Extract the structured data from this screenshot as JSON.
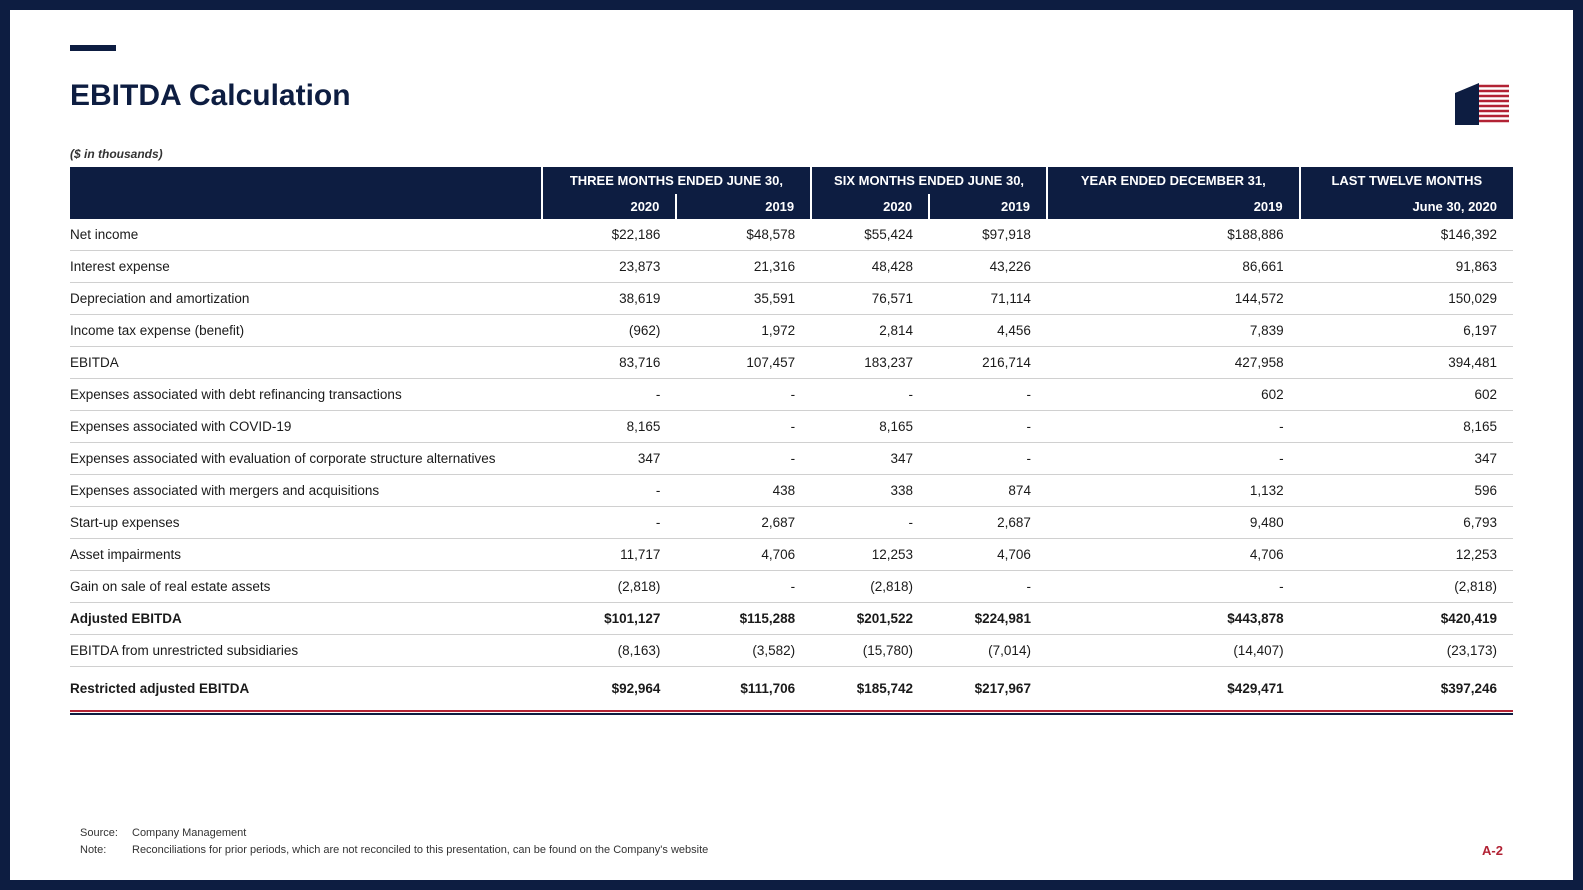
{
  "colors": {
    "navy": "#0d1d41",
    "red": "#b22234",
    "text": "#1a1a1a",
    "border_light": "#d0d0d0",
    "white": "#ffffff"
  },
  "title": "EBITDA Calculation",
  "subtitle": "($ in thousands)",
  "table": {
    "group_headers": [
      "",
      "THREE MONTHS ENDED JUNE 30,",
      "SIX MONTHS ENDED JUNE 30,",
      "YEAR ENDED DECEMBER 31,",
      "LAST TWELVE MONTHS"
    ],
    "year_headers": [
      "",
      "2020",
      "2019",
      "2020",
      "2019",
      "2019",
      "June 30, 2020"
    ],
    "col_widths_label": "420px",
    "rows": [
      {
        "label": "Net income",
        "v": [
          "$22,186",
          "$48,578",
          "$55,424",
          "$97,918",
          "$188,886",
          "$146,392"
        ],
        "bold": false
      },
      {
        "label": "Interest expense",
        "v": [
          "23,873",
          "21,316",
          "48,428",
          "43,226",
          "86,661",
          "91,863"
        ],
        "bold": false
      },
      {
        "label": "Depreciation and amortization",
        "v": [
          "38,619",
          "35,591",
          "76,571",
          "71,114",
          "144,572",
          "150,029"
        ],
        "bold": false
      },
      {
        "label": "Income tax expense (benefit)",
        "v": [
          "(962)",
          "1,972",
          "2,814",
          "4,456",
          "7,839",
          "6,197"
        ],
        "bold": false
      },
      {
        "label": "EBITDA",
        "v": [
          "83,716",
          "107,457",
          "183,237",
          "216,714",
          "427,958",
          "394,481"
        ],
        "bold": false
      },
      {
        "label": "Expenses associated with debt refinancing transactions",
        "v": [
          "-",
          "-",
          "-",
          "-",
          "602",
          "602"
        ],
        "bold": false
      },
      {
        "label": "Expenses associated with COVID-19",
        "v": [
          "8,165",
          "-",
          "8,165",
          "-",
          "-",
          "8,165"
        ],
        "bold": false
      },
      {
        "label": "Expenses associated with evaluation of corporate structure alternatives",
        "v": [
          "347",
          "-",
          "347",
          "-",
          "-",
          "347"
        ],
        "bold": false
      },
      {
        "label": "Expenses associated with mergers and acquisitions",
        "v": [
          "-",
          "438",
          "338",
          "874",
          "1,132",
          "596"
        ],
        "bold": false
      },
      {
        "label": "Start-up expenses",
        "v": [
          "-",
          "2,687",
          "-",
          "2,687",
          "9,480",
          "6,793"
        ],
        "bold": false
      },
      {
        "label": "Asset impairments",
        "v": [
          "11,717",
          "4,706",
          "12,253",
          "4,706",
          "4,706",
          "12,253"
        ],
        "bold": false
      },
      {
        "label": "Gain on sale of real estate assets",
        "v": [
          "(2,818)",
          "-",
          "(2,818)",
          "-",
          "-",
          "(2,818)"
        ],
        "bold": false
      },
      {
        "label": "Adjusted EBITDA",
        "v": [
          "$101,127",
          "$115,288",
          "$201,522",
          "$224,981",
          "$443,878",
          "$420,419"
        ],
        "bold": true
      },
      {
        "label": "EBITDA from unrestricted subsidiaries",
        "v": [
          "(8,163)",
          "(3,582)",
          "(15,780)",
          "(7,014)",
          "(14,407)",
          "(23,173)"
        ],
        "bold": false
      },
      {
        "label": "Restricted adjusted EBITDA",
        "v": [
          "$92,964",
          "$111,706",
          "$185,742",
          "$217,967",
          "$429,471",
          "$397,246"
        ],
        "bold": true,
        "final": true
      }
    ]
  },
  "footer": {
    "source_label": "Source:",
    "source_text": "Company Management",
    "note_label": "Note:",
    "note_text": "Reconciliations for prior periods, which are not reconciled to this presentation, can be found on the Company's website",
    "page": "A-2"
  }
}
